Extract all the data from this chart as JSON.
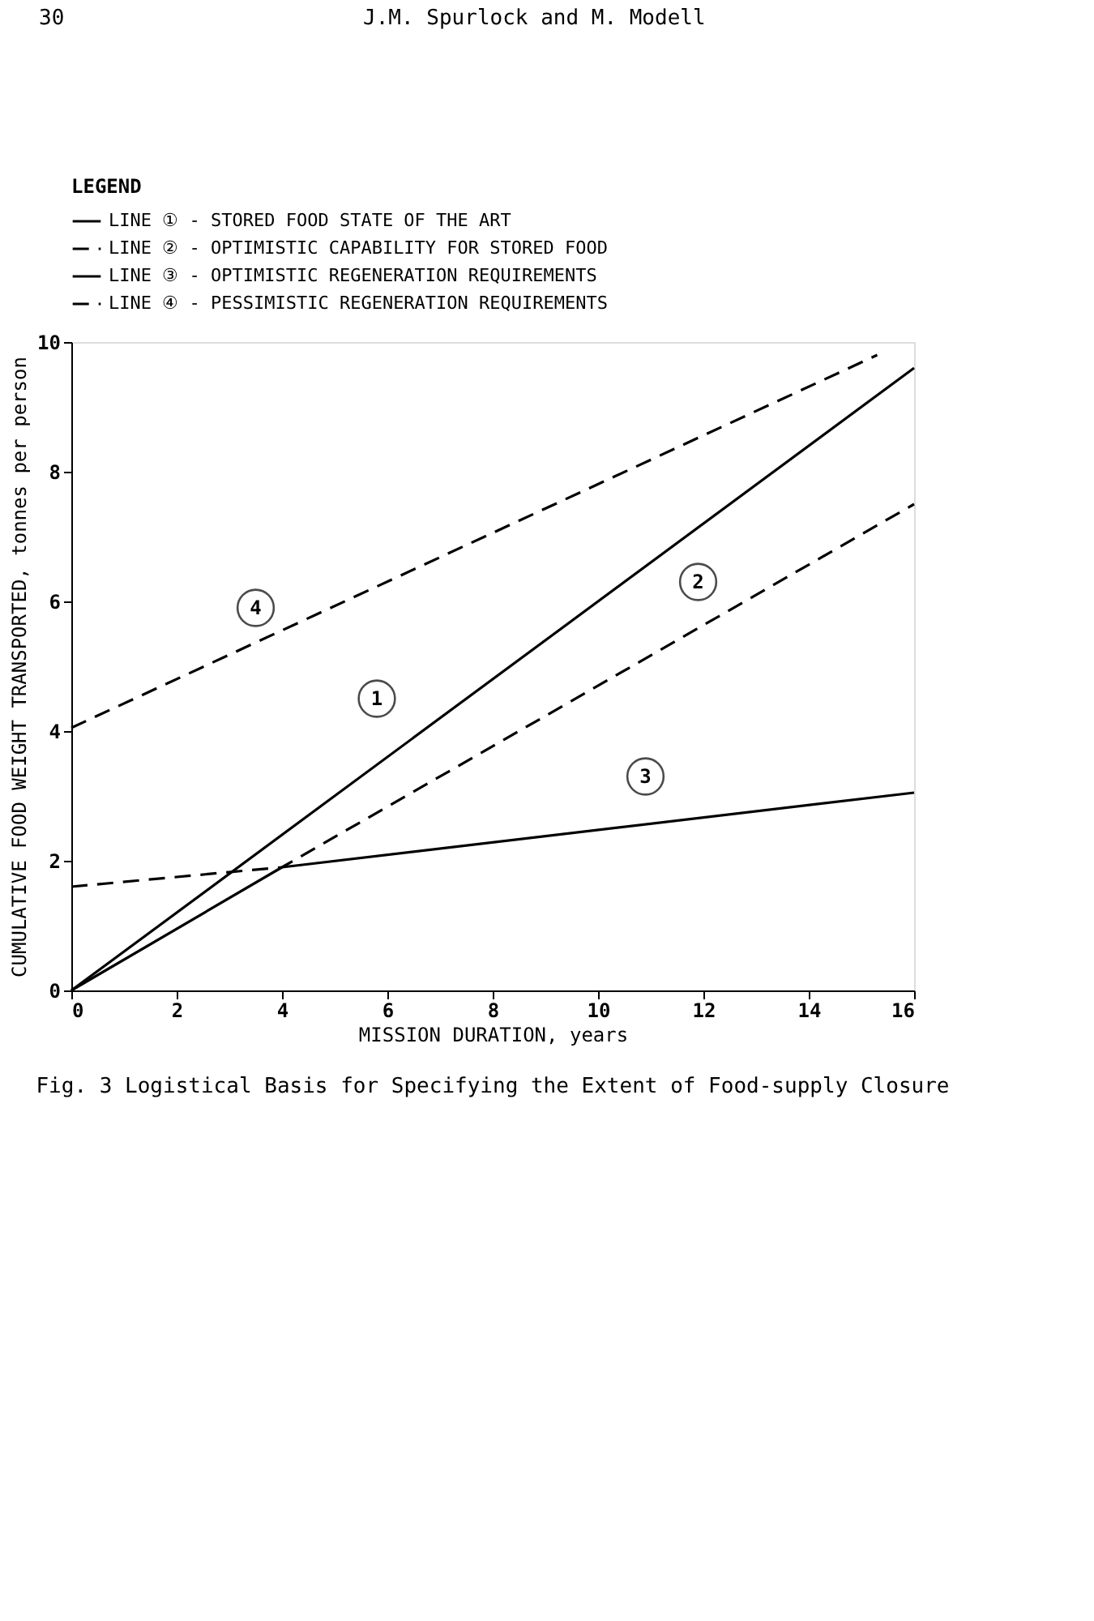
{
  "chart_data": {
    "type": "line",
    "title": "Fig. 3 Logistical Basis for Specifying the Extent of Food-supply Closure",
    "xlabel": "MISSION DURATION, years",
    "ylabel": "CUMULATIVE FOOD WEIGHT TRANSPORTED, tonnes per person",
    "legend_title": "LEGEND",
    "series": [
      {
        "name": "LINE ① - STORED FOOD STATE OF THE ART",
        "color": "#000000",
        "line_style": "solid",
        "x": [
          0,
          16
        ],
        "values": [
          0,
          9.6
        ]
      },
      {
        "name": "LINE ② - OPTIMISTIC CAPABILITY FOR STORED FOOD",
        "color": "#000000",
        "line_style": "dashed",
        "x": [
          0,
          4,
          16
        ],
        "values": [
          1.6,
          1.9,
          7.5
        ]
      },
      {
        "name": "LINE ③ - OPTIMISTIC REGENERATION REQUIREMENTS",
        "color": "#000000",
        "line_style": "solid",
        "x": [
          0,
          4,
          16
        ],
        "values": [
          0,
          1.9,
          3.05
        ]
      },
      {
        "name": "LINE ④ - PESSIMISTIC REGENERATION REQUIREMENTS",
        "color": "#000000",
        "line_style": "dashed",
        "x": [
          0,
          15.3
        ],
        "values": [
          4.05,
          9.8
        ]
      }
    ],
    "xlim": [
      0,
      16
    ],
    "xticks": [
      0,
      2,
      4,
      6,
      8,
      10,
      12,
      14,
      16
    ],
    "ylim": [
      0,
      10
    ],
    "yticks": [
      0,
      2,
      4,
      6,
      8,
      10
    ],
    "grid": false,
    "legend": "top",
    "marker": "none",
    "annotations": [
      "30",
      "J.M. Spurlock and M. Modell",
      {
        "text": "1",
        "x": 5.8,
        "y": 4.5
      },
      {
        "text": "2",
        "x": 11.9,
        "y": 6.3
      },
      {
        "text": "3",
        "x": 10.9,
        "y": 3.3
      },
      {
        "text": "4",
        "x": 3.5,
        "y": 5.9
      }
    ]
  }
}
